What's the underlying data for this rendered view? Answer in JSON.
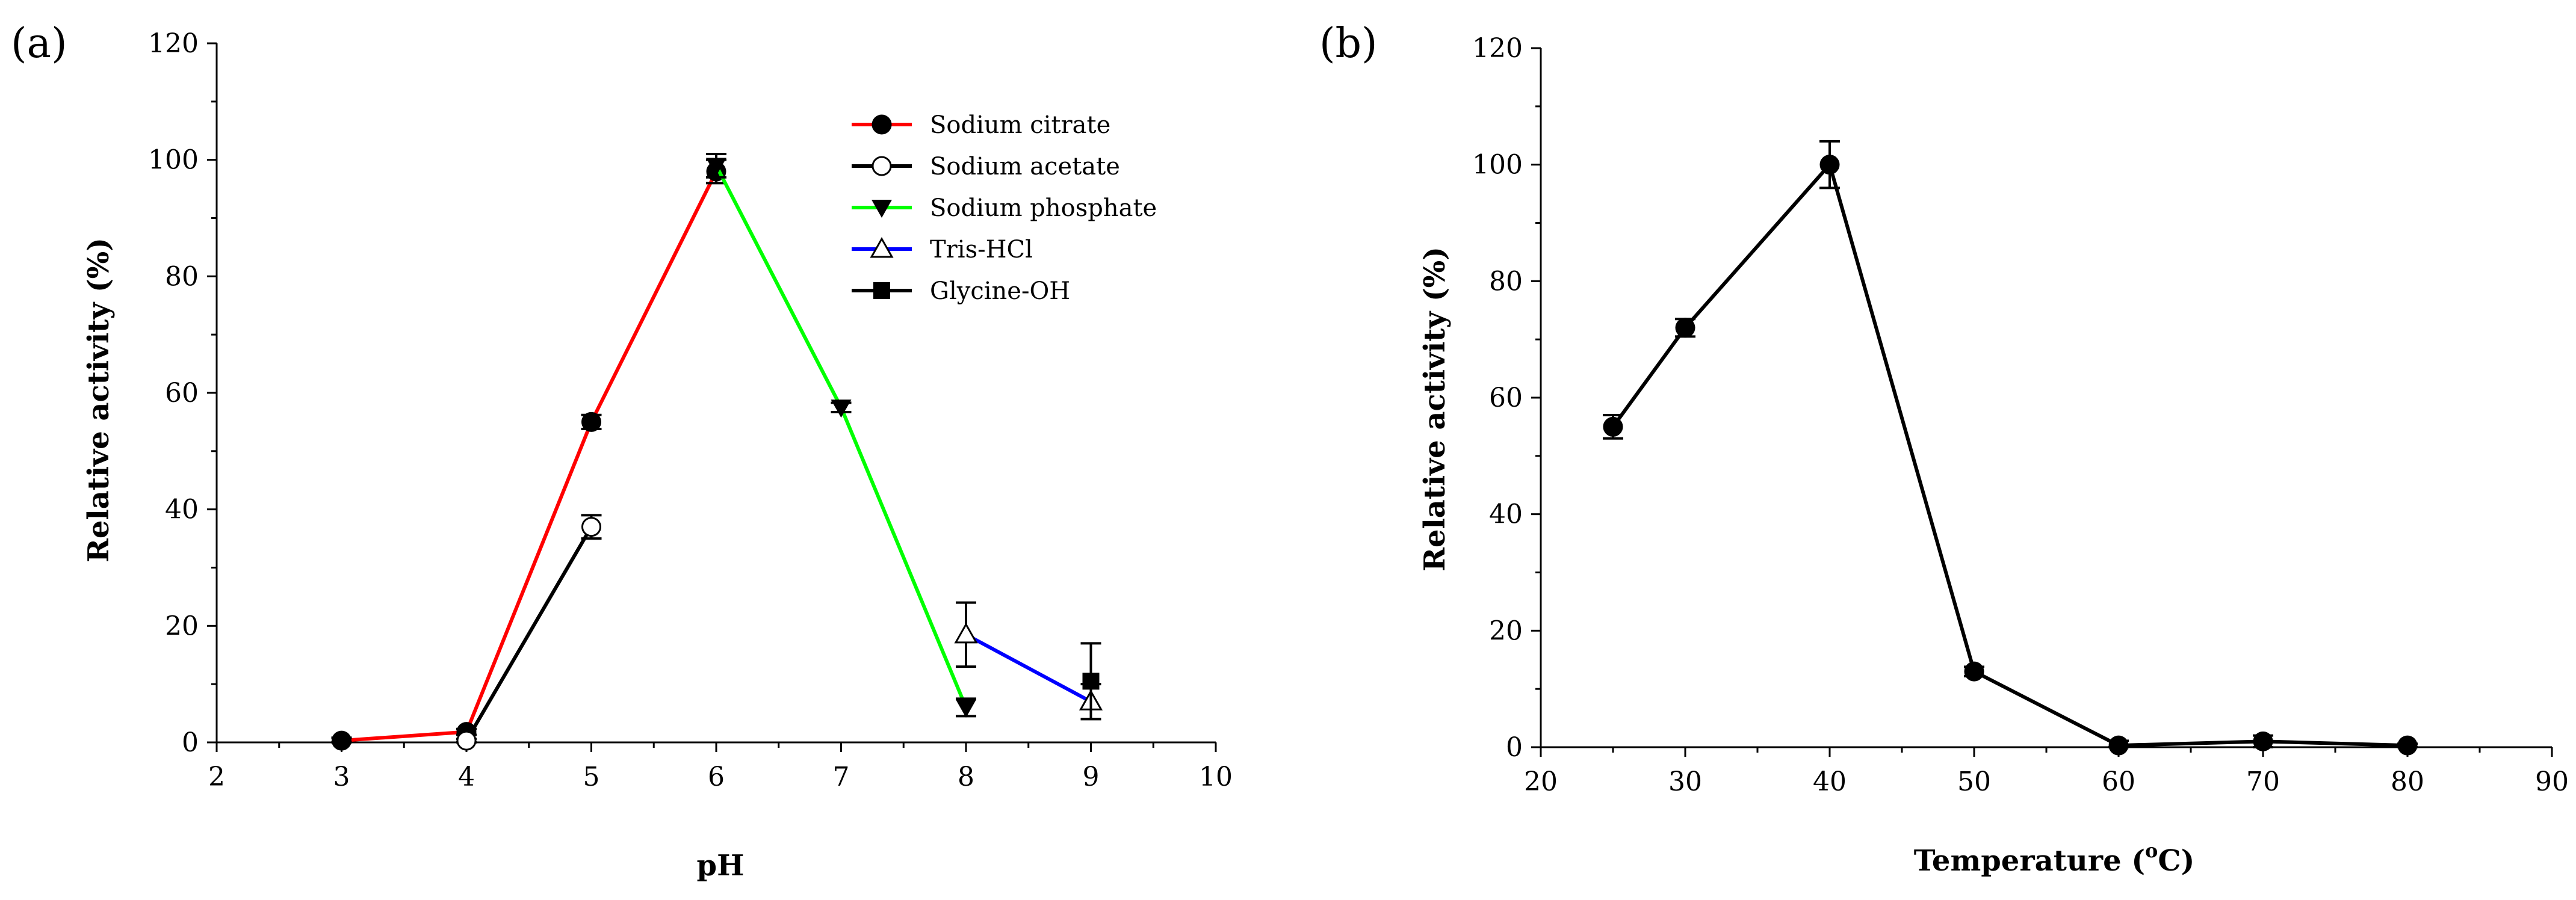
{
  "chart_data": [
    {
      "panel": "(a)",
      "type": "line",
      "title": "",
      "xlabel": "pH",
      "ylabel": "Relative activity (%)",
      "xlim": [
        2,
        10
      ],
      "ylim": [
        0,
        120
      ],
      "xticks": [
        2,
        3,
        4,
        5,
        6,
        7,
        8,
        9,
        10
      ],
      "yticks": [
        0,
        20,
        40,
        60,
        80,
        100,
        120
      ],
      "legend_position": "top-right",
      "series": [
        {
          "name": "Sodium citrate",
          "color": "#ff0000",
          "marker": "filled-circle",
          "x": [
            3,
            4,
            5,
            6
          ],
          "y": [
            0.3,
            1.8,
            55,
            98
          ],
          "err": [
            0.5,
            0.5,
            1.2,
            2
          ]
        },
        {
          "name": "Sodium acetate",
          "color": "#000000",
          "marker": "open-circle",
          "x": [
            4,
            5
          ],
          "y": [
            0.3,
            37
          ],
          "err": [
            0.3,
            2
          ]
        },
        {
          "name": "Sodium phosphate",
          "color": "#00ff00",
          "marker": "filled-triangle-down",
          "x": [
            6,
            7,
            8
          ],
          "y": [
            99,
            57.5,
            6
          ],
          "err": [
            2,
            0.8,
            1.5
          ]
        },
        {
          "name": "Tris-HCl",
          "color": "#0000ff",
          "marker": "open-triangle-up",
          "x": [
            8,
            9
          ],
          "y": [
            18.5,
            7
          ],
          "err": [
            5.5,
            3
          ]
        },
        {
          "name": "Glycine-OH",
          "color": "#000000",
          "marker": "filled-square",
          "x": [
            9
          ],
          "y": [
            10.5
          ],
          "err": [
            6.5
          ]
        }
      ]
    },
    {
      "panel": "(b)",
      "type": "line",
      "title": "",
      "xlabel": "Temperature (",
      "xlabel_sup": "o",
      "xlabel_tail": "C)",
      "ylabel": "Relative activity (%)",
      "xlim": [
        20,
        90
      ],
      "ylim": [
        0,
        120
      ],
      "xticks": [
        20,
        30,
        40,
        50,
        60,
        70,
        80,
        90
      ],
      "yticks": [
        0,
        20,
        40,
        60,
        80,
        100,
        120
      ],
      "series": [
        {
          "name": "Temperature",
          "color": "#000000",
          "marker": "filled-circle",
          "x": [
            25,
            30,
            40,
            50,
            60,
            70,
            80
          ],
          "y": [
            55,
            72,
            100,
            13,
            0.3,
            1,
            0.3
          ],
          "err": [
            2,
            1.5,
            4,
            0.8,
            0.8,
            1,
            0.3
          ]
        }
      ]
    }
  ]
}
